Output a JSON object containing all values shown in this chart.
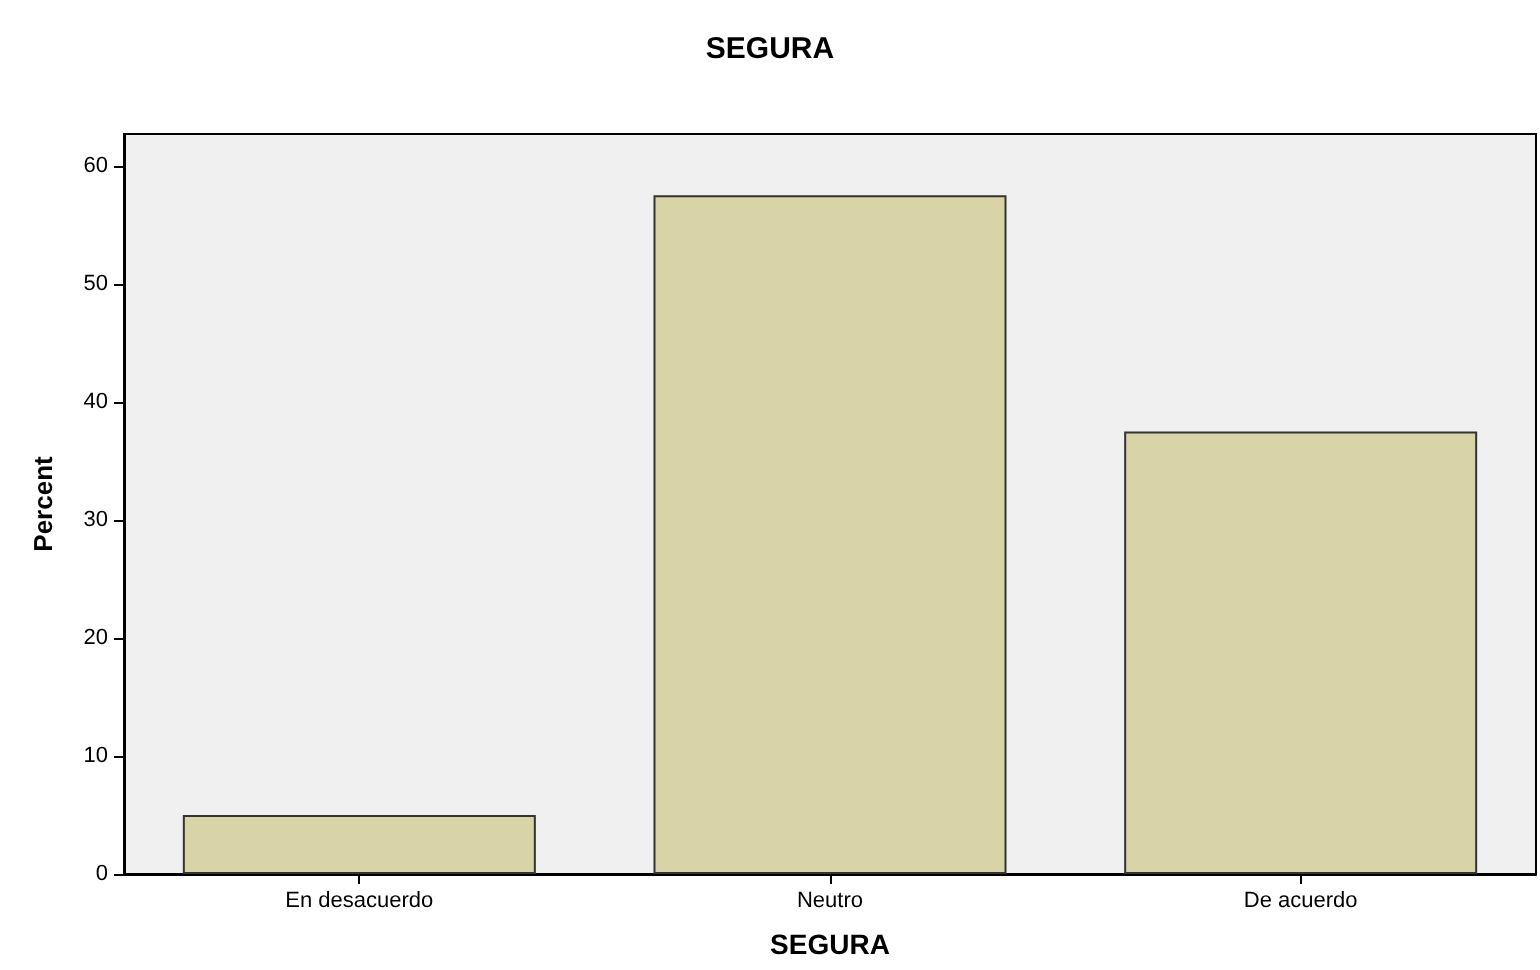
{
  "chart_data": {
    "type": "bar",
    "title": "SEGURA",
    "xlabel": "SEGURA",
    "ylabel": "Percent",
    "categories": [
      "En desacuerdo",
      "Neutro",
      "De acuerdo"
    ],
    "values": [
      5,
      57.5,
      37.5
    ],
    "color": "#d9d4a8",
    "ylim": [
      0,
      62.7
    ],
    "yticks": [
      0,
      10,
      20,
      30,
      40,
      50,
      60
    ],
    "grid": false
  }
}
